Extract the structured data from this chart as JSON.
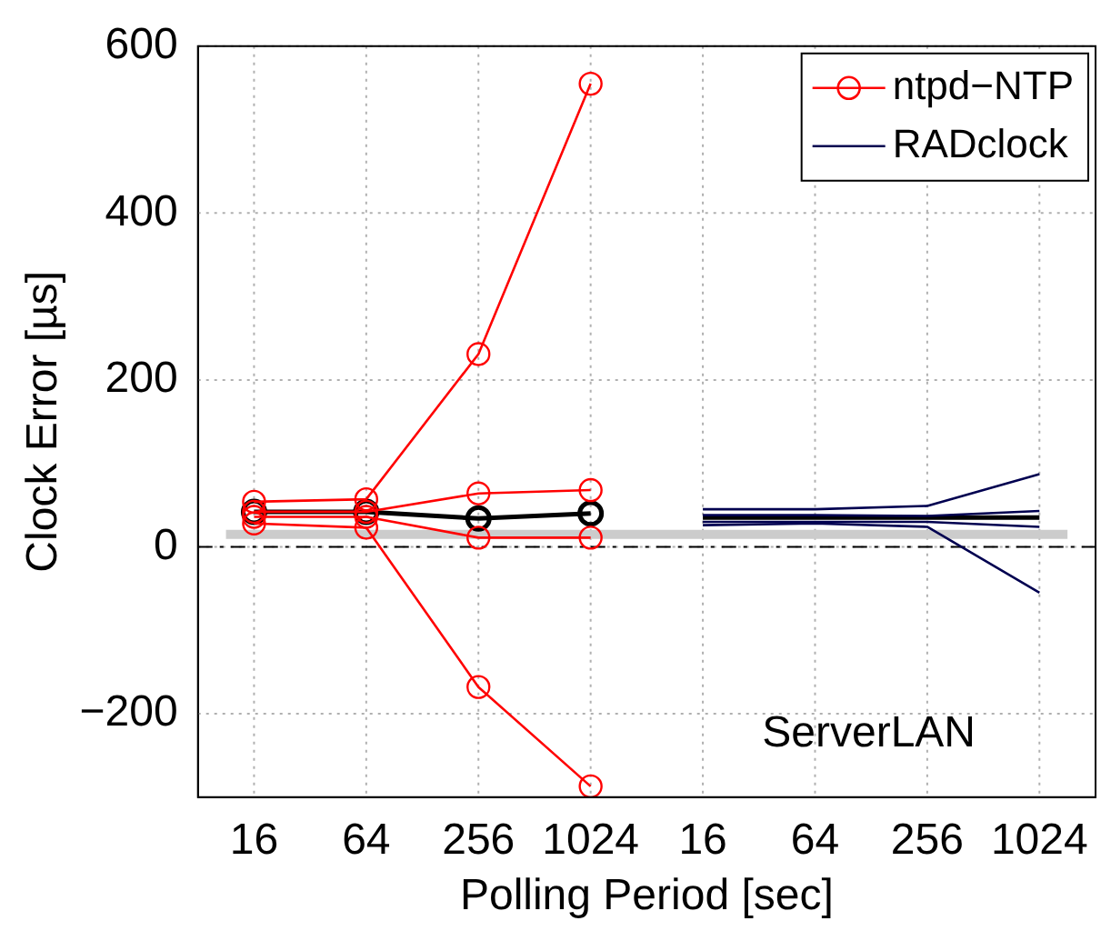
{
  "chart_data": {
    "type": "line",
    "xlabel": "Polling Period [sec]",
    "ylabel": "Clock Error [µs]",
    "categories": [
      "16",
      "64",
      "256",
      "1024",
      "16",
      "64",
      "256",
      "1024"
    ],
    "ylim": [
      -300,
      600
    ],
    "yticks": [
      -200,
      0,
      200,
      400,
      600
    ],
    "grid": true,
    "legend": "top right",
    "annotations": [
      "ServerLAN"
    ],
    "ref_lines": [
      {
        "axis": "y",
        "value": 15,
        "color": "#cccccc",
        "line_style": "solid"
      },
      {
        "axis": "y",
        "value": 0,
        "color": "#000000",
        "line_style": "dashed"
      }
    ],
    "series": [
      {
        "name": "ntpd−NTP",
        "values": [
          54,
          57,
          231,
          555,
          null,
          null,
          null,
          null
        ],
        "color": "#ff0000",
        "marker": "circle"
      },
      {
        "values": [
          42,
          42,
          64,
          68,
          null,
          null,
          null,
          null
        ],
        "color": "#ff0000",
        "marker": "circle"
      },
      {
        "values": [
          36,
          36,
          11,
          11,
          null,
          null,
          null,
          null
        ],
        "color": "#ff0000",
        "marker": "circle"
      },
      {
        "values": [
          28,
          23,
          -168,
          -287,
          null,
          null,
          null,
          null
        ],
        "color": "#ff0000",
        "marker": "circle"
      },
      {
        "values": [
          42,
          42,
          34,
          40,
          null,
          null,
          null,
          null
        ],
        "color": "#000000",
        "marker": "circle"
      },
      {
        "name": "RADclock",
        "values": [
          null,
          null,
          null,
          null,
          45,
          45,
          49,
          87
        ],
        "color": "#000050",
        "marker": "none"
      },
      {
        "values": [
          null,
          null,
          null,
          null,
          38,
          38,
          37,
          43
        ],
        "color": "#000050",
        "marker": "none"
      },
      {
        "values": [
          null,
          null,
          null,
          null,
          30,
          30,
          30,
          24
        ],
        "color": "#000050",
        "marker": "none"
      },
      {
        "values": [
          null,
          null,
          null,
          null,
          26,
          28,
          24,
          -55
        ],
        "color": "#000050",
        "marker": "none"
      },
      {
        "values": [
          null,
          null,
          null,
          null,
          35,
          35,
          35,
          35
        ],
        "color": "#000000",
        "marker": "none"
      }
    ]
  }
}
